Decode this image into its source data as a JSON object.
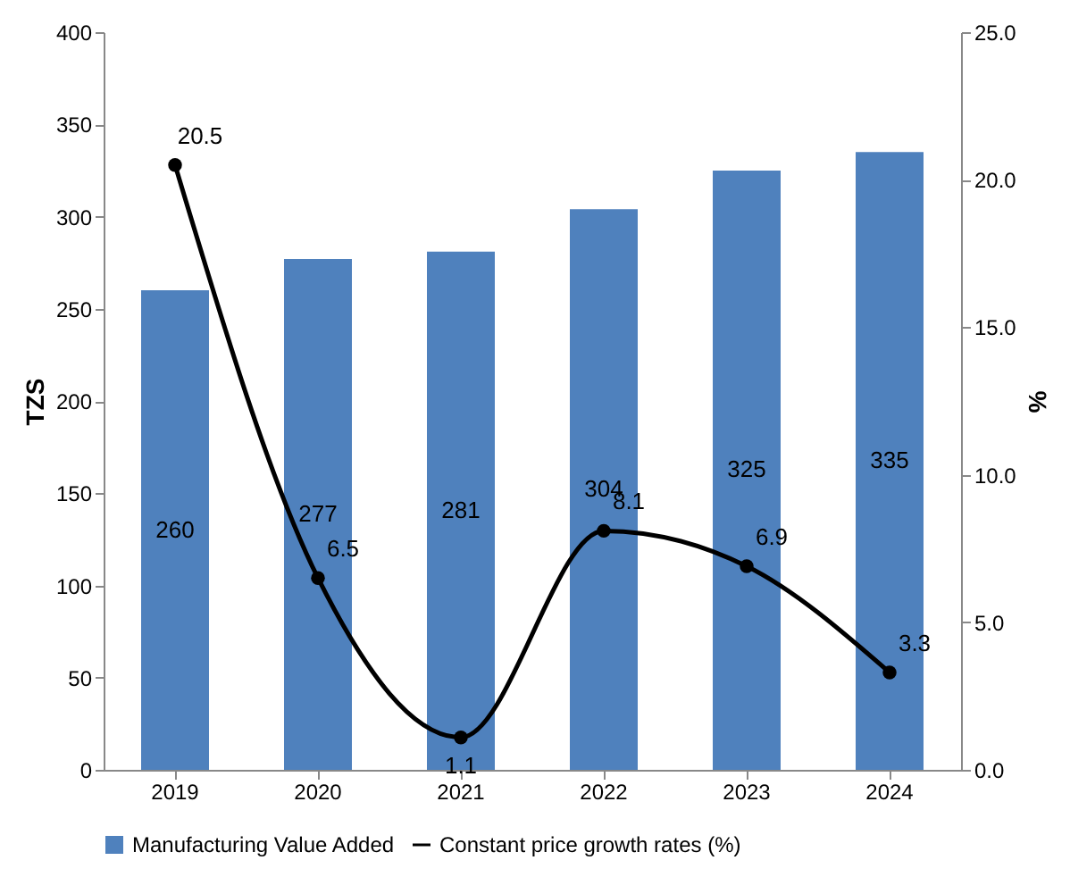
{
  "chart_data": {
    "type": "bar",
    "categories": [
      "2019",
      "2020",
      "2021",
      "2022",
      "2023",
      "2024"
    ],
    "ylabel": "TZS",
    "y2label": "%",
    "ylim": [
      0,
      400
    ],
    "yticks": [
      0,
      50,
      100,
      150,
      200,
      250,
      300,
      350,
      400
    ],
    "y2lim": [
      0,
      25
    ],
    "y2ticks": [
      {
        "value": 0,
        "label": "0.0"
      },
      {
        "value": 5,
        "label": "5.0"
      },
      {
        "value": 10,
        "label": "10.0"
      },
      {
        "value": 15,
        "label": "15.0"
      },
      {
        "value": 20,
        "label": "20.0"
      },
      {
        "value": 25,
        "label": "25.0"
      }
    ],
    "series": [
      {
        "name": "Manufacturing Value Added",
        "color": "#4f81bd",
        "values": [
          260,
          277,
          281,
          304,
          325,
          335
        ]
      },
      {
        "name": "Constant price growth rates (%)",
        "type": "line",
        "axis": "y2",
        "color": "#000000",
        "values": [
          20.5,
          6.5,
          1.1,
          8.1,
          6.9,
          3.3
        ],
        "marker": "circle",
        "line_style": "solid"
      }
    ],
    "data_labels": true,
    "grid": false,
    "legend": "bottom"
  }
}
